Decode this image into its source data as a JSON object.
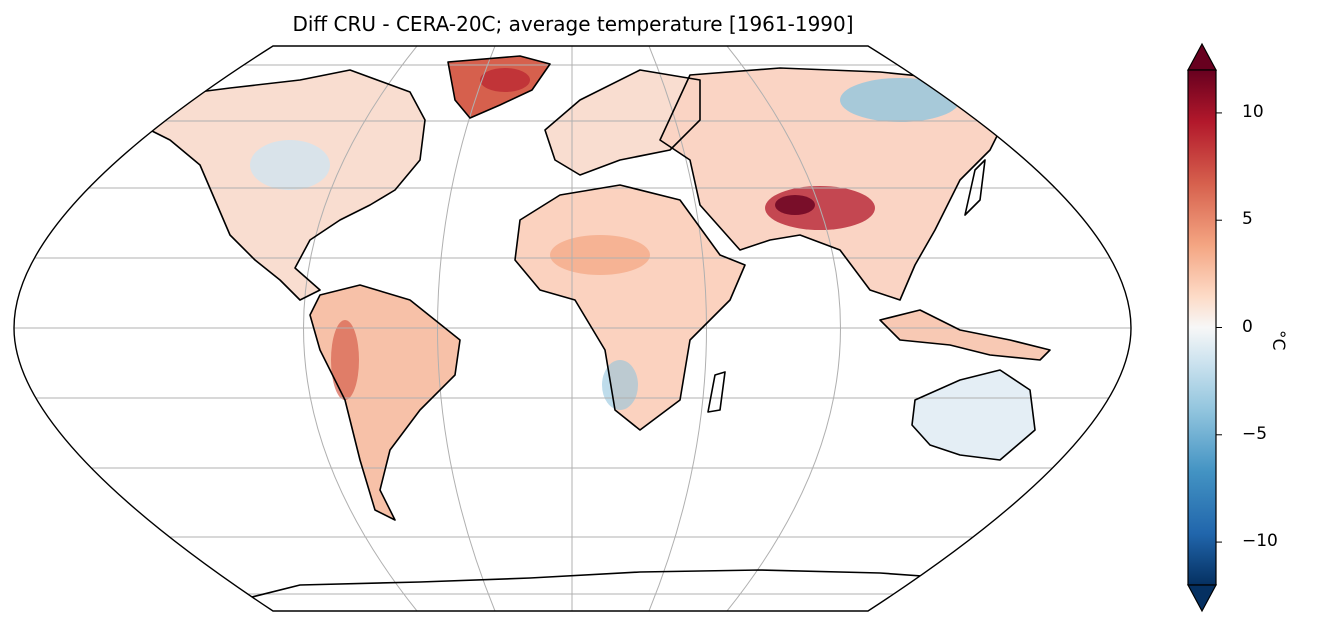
{
  "map": {
    "title": "Diff CRU - CERA-20C; average temperature [1961-1990]",
    "projection": "Robinson",
    "colorbar": {
      "label": "°C",
      "ticks": [
        {
          "value": 10,
          "label": "10"
        },
        {
          "value": 5,
          "label": "5"
        },
        {
          "value": 0,
          "label": "0"
        },
        {
          "value": -5,
          "label": "−5"
        },
        {
          "value": -10,
          "label": "−10"
        }
      ],
      "range": [
        -12,
        12
      ],
      "extend": "both",
      "colormap": "RdBu_r",
      "colors": [
        "#053061",
        "#2166ac",
        "#4393c3",
        "#92c5de",
        "#d1e5f0",
        "#f7f7f7",
        "#fddbc7",
        "#f4a582",
        "#d6604d",
        "#b2182b",
        "#67001f"
      ]
    },
    "colors": {
      "coastline": "#000000",
      "gridline": "#b0b0b0",
      "ocean": "#ffffff"
    }
  }
}
